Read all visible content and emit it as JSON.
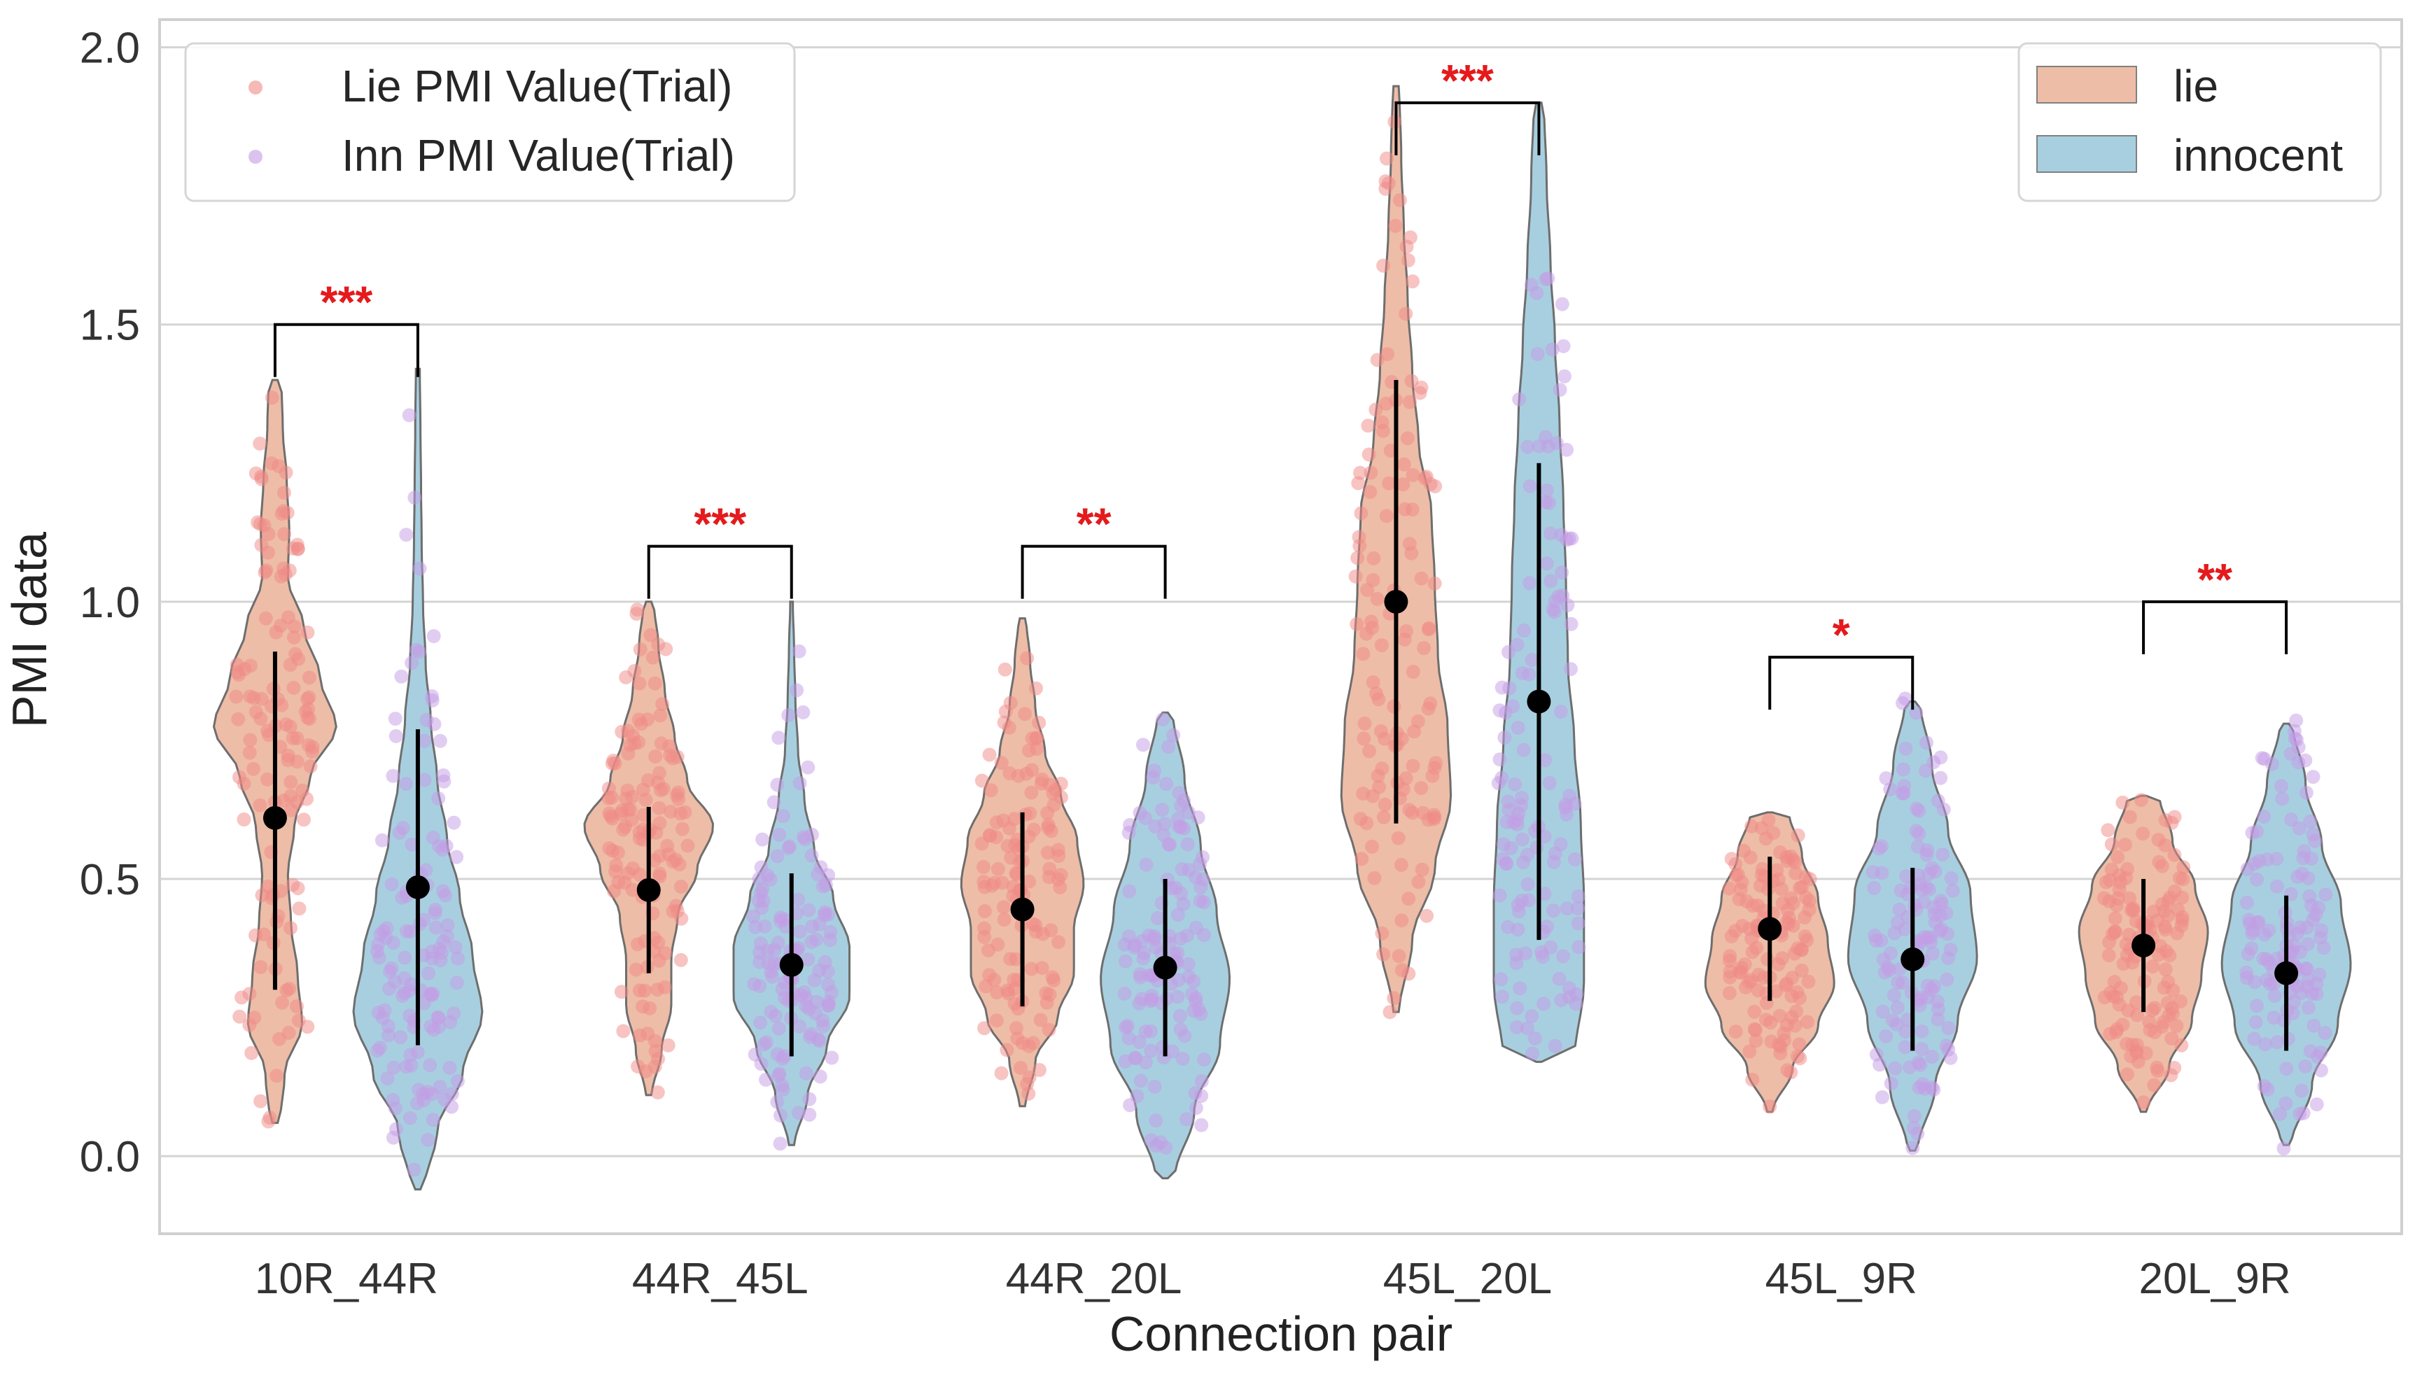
{
  "chart_data": {
    "type": "violin",
    "xlabel": "Connection pair",
    "ylabel": "PMI data",
    "ylim": [
      -0.14,
      2.05
    ],
    "yticks": [
      0.0,
      0.5,
      1.0,
      1.5,
      2.0
    ],
    "ytick_labels": [
      "0.0",
      "0.5",
      "1.0",
      "1.5",
      "2.0"
    ],
    "grid": "horizontal",
    "categories": [
      "10R_44R",
      "44R_45L",
      "44R_20L",
      "45L_20L",
      "45L_9R",
      "20L_9R"
    ],
    "series": [
      {
        "name": "lie",
        "fill": "#eebda7",
        "point_color": "#ef8a86",
        "legend_label": "Lie PMI Value(Trial)",
        "means": [
          0.61,
          0.48,
          0.445,
          1.0,
          0.41,
          0.38
        ],
        "err_low": [
          0.3,
          0.33,
          0.27,
          0.6,
          0.28,
          0.26
        ],
        "err_high": [
          0.91,
          0.63,
          0.62,
          1.4,
          0.54,
          0.5
        ],
        "range": [
          [
            0.06,
            1.4
          ],
          [
            0.11,
            1.0
          ],
          [
            0.09,
            0.97
          ],
          [
            0.26,
            1.93
          ],
          [
            0.08,
            0.62
          ],
          [
            0.08,
            0.65
          ]
        ],
        "density": [
          [
            0.08,
            0.15,
            0.42,
            0.35,
            0.25,
            0.2,
            0.3,
            0.55,
            0.95,
            0.7,
            0.45,
            0.2,
            0.22,
            0.18,
            0.12,
            0.1
          ],
          [
            0.05,
            0.2,
            0.35,
            0.35,
            0.45,
            0.75,
            1.0,
            0.6,
            0.4,
            0.25,
            0.15,
            0.08
          ],
          [
            0.05,
            0.2,
            0.55,
            0.8,
            0.8,
            0.95,
            0.85,
            0.6,
            0.35,
            0.2,
            0.12,
            0.06
          ],
          [
            0.05,
            0.25,
            0.6,
            0.85,
            0.8,
            0.65,
            0.6,
            0.55,
            0.35,
            0.25,
            0.18,
            0.12,
            0.08,
            0.05
          ],
          [
            0.05,
            0.35,
            0.75,
            1.0,
            0.9,
            0.75,
            0.5,
            0.3
          ],
          [
            0.06,
            0.4,
            0.75,
            0.9,
            1.0,
            0.8,
            0.45,
            0.25
          ]
        ]
      },
      {
        "name": "innocent",
        "fill": "#a8cfe0",
        "point_color": "#c39be6",
        "legend_label": "Inn PMI Value(Trial)",
        "means": [
          0.485,
          0.345,
          0.34,
          0.82,
          0.355,
          0.33
        ],
        "err_low": [
          0.2,
          0.18,
          0.18,
          0.39,
          0.19,
          0.19
        ],
        "err_high": [
          0.77,
          0.51,
          0.5,
          1.25,
          0.52,
          0.47
        ],
        "range": [
          [
            -0.06,
            1.42
          ],
          [
            0.02,
            1.0
          ],
          [
            -0.04,
            0.8
          ],
          [
            0.17,
            1.9
          ],
          [
            0.01,
            0.82
          ],
          [
            0.02,
            0.78
          ]
        ],
        "density": [
          [
            0.1,
            0.3,
            0.7,
            1.0,
            0.85,
            0.65,
            0.45,
            0.3,
            0.2,
            0.12,
            0.08,
            0.06,
            0.05,
            0.04,
            0.03
          ],
          [
            0.05,
            0.25,
            0.55,
            0.9,
            0.9,
            0.65,
            0.35,
            0.2,
            0.1,
            0.06,
            0.04,
            0.02
          ],
          [
            0.15,
            0.45,
            0.85,
            1.0,
            0.8,
            0.55,
            0.3,
            0.12
          ],
          [
            0.55,
            0.7,
            0.7,
            0.65,
            0.55,
            0.45,
            0.42,
            0.38,
            0.32,
            0.25,
            0.18,
            0.12,
            0.08
          ],
          [
            0.08,
            0.35,
            0.7,
            1.0,
            0.9,
            0.55,
            0.3,
            0.12
          ],
          [
            0.08,
            0.4,
            0.8,
            1.0,
            0.85,
            0.55,
            0.3,
            0.1
          ]
        ]
      }
    ],
    "significance": [
      {
        "pair": "10R_44R",
        "label": "***",
        "y": 1.5
      },
      {
        "pair": "44R_45L",
        "label": "***",
        "y": 1.1
      },
      {
        "pair": "44R_20L",
        "label": "**",
        "y": 1.1
      },
      {
        "pair": "45L_20L",
        "label": "***",
        "y": 1.9
      },
      {
        "pair": "45L_9R",
        "label": "*",
        "y": 0.9
      },
      {
        "pair": "20L_9R",
        "label": "**",
        "y": 1.0
      }
    ],
    "legends": [
      {
        "position": "top-left",
        "entries": [
          "Lie PMI Value(Trial)",
          "Inn PMI Value(Trial)"
        ]
      },
      {
        "position": "top-right",
        "entries": [
          "lie",
          "innocent"
        ]
      }
    ]
  }
}
